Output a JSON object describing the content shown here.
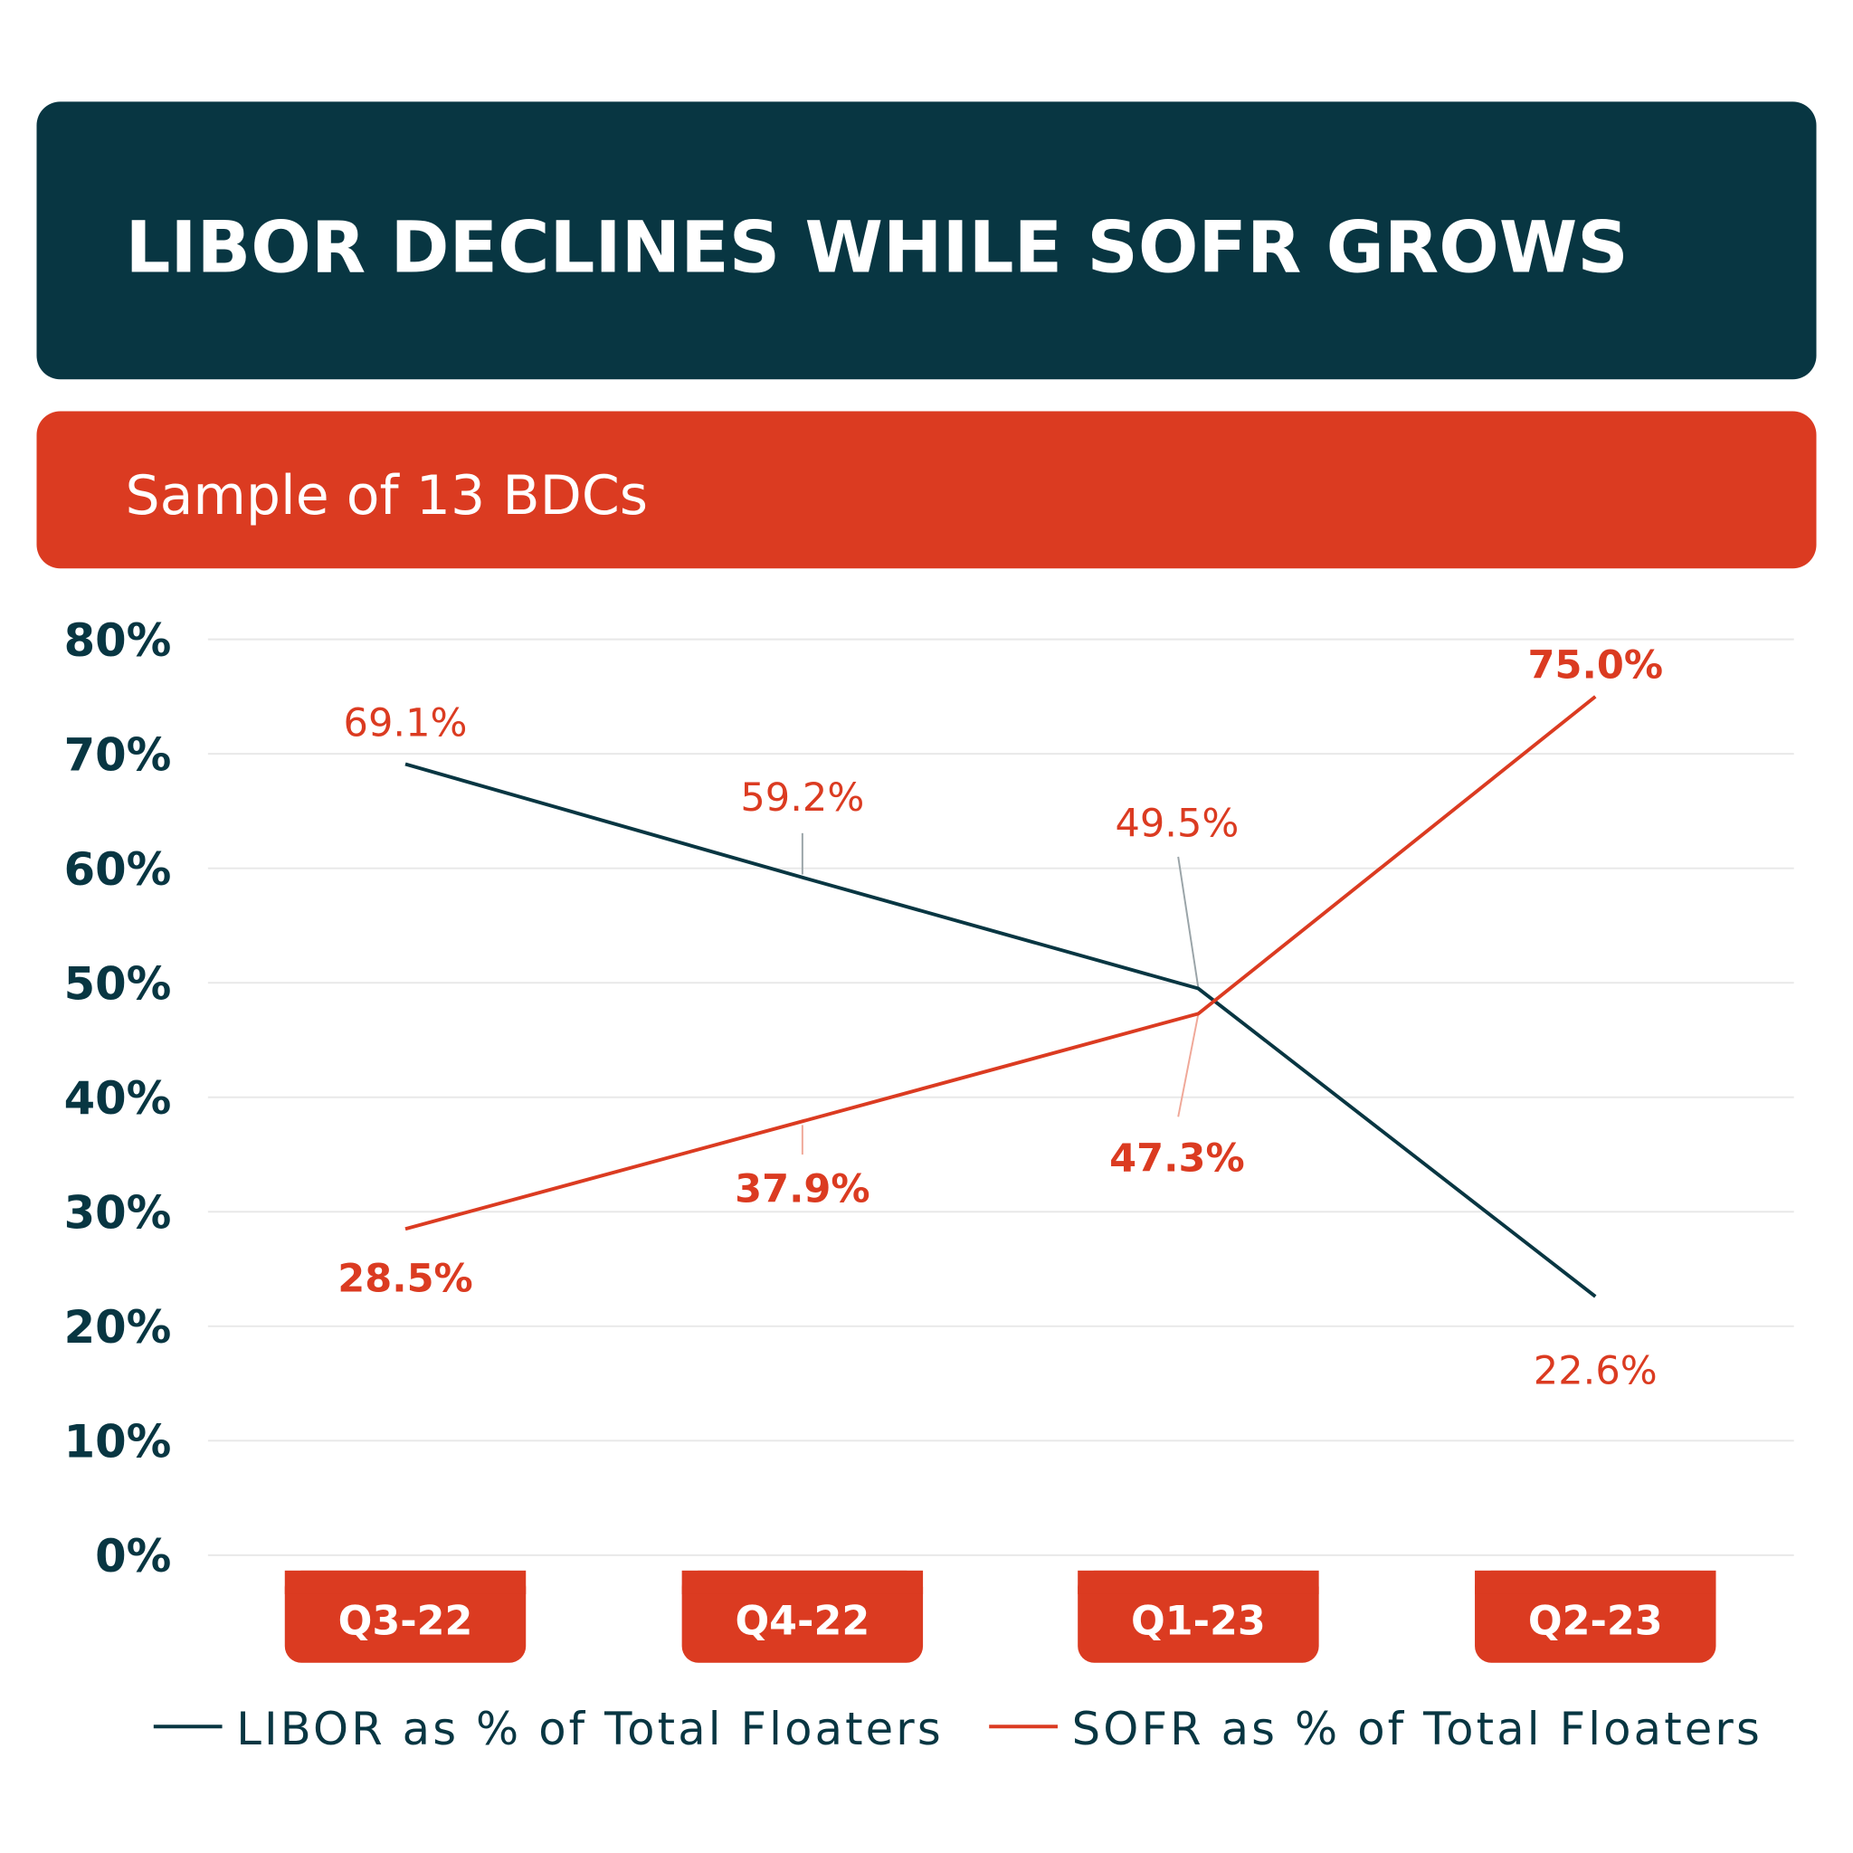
{
  "colors": {
    "dark": "#083642",
    "accent": "#db3b21",
    "grid": "#e8e8e8",
    "leader": "#9aa4a8"
  },
  "header": {
    "title": "LIBOR DECLINES WHILE SOFR GROWS"
  },
  "subheader": {
    "title": "Sample of 13 BDCs"
  },
  "chart_data": {
    "type": "line",
    "title": "LIBOR DECLINES WHILE SOFR GROWS",
    "subtitle": "Sample of 13 BDCs",
    "categories": [
      "Q3-22",
      "Q4-22",
      "Q1-23",
      "Q2-23"
    ],
    "ylim": [
      0,
      80
    ],
    "yticks": [
      "0%",
      "10%",
      "20%",
      "30%",
      "40%",
      "50%",
      "60%",
      "70%",
      "80%"
    ],
    "grid": true,
    "legend_placement": "bottom",
    "series": [
      {
        "name": "LIBOR as % of Total Floaters",
        "color": "#083642",
        "values": [
          69.1,
          59.2,
          49.5,
          22.6
        ],
        "labels": [
          "69.1%",
          "59.2%",
          "49.5%",
          "22.6%"
        ]
      },
      {
        "name": "SOFR as % of Total Floaters",
        "color": "#db3b21",
        "values": [
          28.5,
          37.9,
          47.3,
          75.0
        ],
        "labels": [
          "28.5%",
          "37.9%",
          "47.3%",
          "75.0%"
        ]
      }
    ]
  }
}
